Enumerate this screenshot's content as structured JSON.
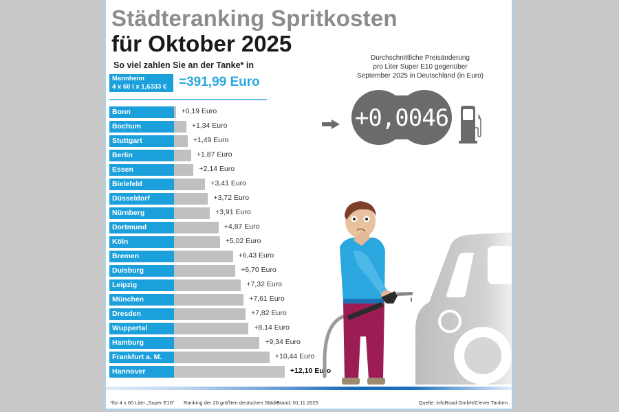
{
  "header": {
    "title_line1": "Städteranking Spritkosten",
    "title_line2": "für Oktober 2025",
    "subtitle": "So viel zahlen Sie an der Tanke* in"
  },
  "highlight": {
    "city": "Mannheim",
    "formula": "4 x 60 l x 1,6333 €",
    "total": "=391,99 Euro"
  },
  "price_change": {
    "description_lines": [
      "Durchschnittliche Preisänderung",
      "pro Liter Super E10 gegenüber",
      "September 2025 in Deutschland (in Euro)"
    ],
    "value": "+0,0046",
    "icons": [
      "arrow-right-icon",
      "gas-pump-icon"
    ]
  },
  "chart_data": {
    "type": "bar",
    "orientation": "horizontal",
    "title": "Städteranking Spritkosten für Oktober 2025",
    "subtitle": "So viel zahlen Sie an der Tanke* in",
    "xlabel": "",
    "ylabel": "",
    "unit": "Euro",
    "baseline_city": "Mannheim",
    "baseline_value": 391.99,
    "categories": [
      "Bonn",
      "Bochum",
      "Stuttgart",
      "Berlin",
      "Essen",
      "Bielefeld",
      "Düsseldorf",
      "Nürnberg",
      "Dortmund",
      "Köln",
      "Bremen",
      "Duisburg",
      "Leipzig",
      "München",
      "Dresden",
      "Wuppertal",
      "Hamburg",
      "Frankfurt a. M.",
      "Hannover"
    ],
    "values": [
      0.19,
      1.34,
      1.49,
      1.87,
      2.14,
      3.41,
      3.72,
      3.91,
      4.87,
      5.02,
      6.43,
      6.7,
      7.32,
      7.61,
      7.82,
      8.14,
      9.34,
      10.44,
      12.1
    ],
    "data_labels": [
      "+0,19 Euro",
      "+1,34 Euro",
      "+1,49 Euro",
      "+1,87 Euro",
      "+2,14 Euro",
      "+3,41 Euro",
      "+3,72 Euro",
      "+3,91 Euro",
      "+4,87 Euro",
      "+5,02 Euro",
      "+6,43 Euro",
      "+6,70 Euro",
      "+7,32 Euro",
      "+7,61 Euro",
      "+7,82 Euro",
      "+8,14 Euro",
      "+9,34 Euro",
      "+10,44 Euro",
      "+12,10 Euro"
    ],
    "xlim": [
      0,
      12.1
    ],
    "grid": false,
    "legend": "none",
    "highlighted_category": "Hannover",
    "colors": {
      "label_box": "#1ba0dc",
      "bar": "#c0c0c0"
    }
  },
  "footer": {
    "note": "*für 4 x 60 Liter „Super E10“",
    "ranking": "Ranking der 20 größten deutschen Städte",
    "date": "Stand: 01.11.2025",
    "source": "Quelle: infoRoad GmbH/Clever Tanken"
  },
  "colors": {
    "accent_blue": "#1ba0dc",
    "title_grey": "#8c8c8c",
    "display_grey": "#6b6b6b"
  }
}
